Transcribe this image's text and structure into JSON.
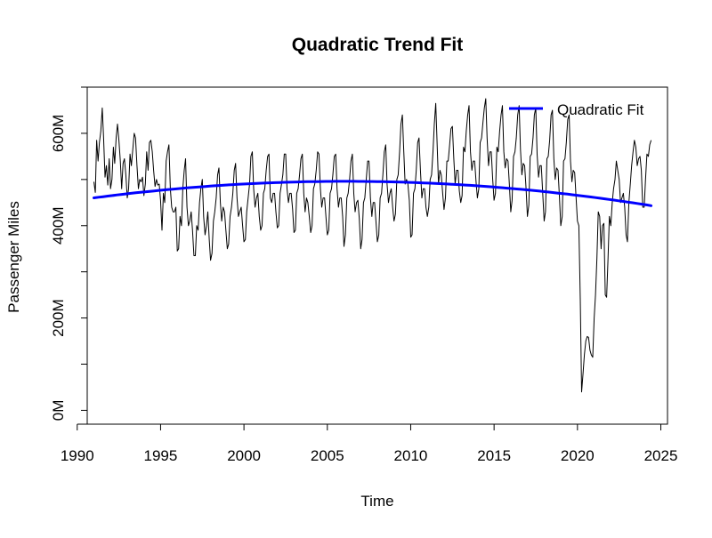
{
  "chart_data": {
    "type": "line",
    "title": "Quadratic Trend Fit",
    "xlabel": "Time",
    "ylabel": "Passenger Miles",
    "xlim": [
      1990.6,
      2025.4
    ],
    "ylim": [
      -30,
      700
    ],
    "x_ticks": [
      1990,
      1995,
      2000,
      2005,
      2010,
      2015,
      2020,
      2025
    ],
    "x_tick_labels": [
      "1990",
      "1995",
      "2000",
      "2005",
      "2010",
      "2015",
      "2020",
      "2025"
    ],
    "y_ticks": [
      0,
      100,
      200,
      300,
      400,
      500,
      600,
      700
    ],
    "y_tick_labels": [
      "0M",
      "",
      "200M",
      "",
      "400M",
      "",
      "600M",
      ""
    ],
    "y_unit": "millions",
    "legend": {
      "position": "top-right",
      "boxed": false
    },
    "series": [
      {
        "name": "",
        "color": "#000000",
        "kind": "monthly",
        "start": [
          1991,
          1
        ],
        "frequency": 12,
        "values": [
          495,
          472,
          585,
          540,
          580,
          605,
          655,
          590,
          505,
          530,
          488,
          545,
          480,
          500,
          570,
          535,
          590,
          620,
          585,
          540,
          480,
          535,
          545,
          510,
          460,
          480,
          555,
          530,
          565,
          600,
          590,
          530,
          480,
          500,
          495,
          505,
          465,
          490,
          560,
          520,
          580,
          585,
          560,
          520,
          485,
          500,
          488,
          490,
          455,
          390,
          470,
          450,
          540,
          560,
          575,
          480,
          440,
          430,
          430,
          440,
          345,
          350,
          420,
          400,
          480,
          520,
          545,
          440,
          400,
          410,
          430,
          390,
          335,
          335,
          400,
          390,
          450,
          480,
          500,
          420,
          380,
          400,
          430,
          370,
          325,
          340,
          410,
          430,
          460,
          510,
          525,
          450,
          410,
          440,
          430,
          390,
          350,
          360,
          420,
          440,
          470,
          520,
          535,
          460,
          420,
          430,
          440,
          400,
          365,
          370,
          430,
          460,
          490,
          550,
          560,
          480,
          440,
          460,
          470,
          420,
          390,
          400,
          470,
          480,
          520,
          550,
          555,
          460,
          450,
          470,
          470,
          430,
          395,
          400,
          470,
          490,
          510,
          555,
          555,
          480,
          450,
          470,
          470,
          435,
          385,
          390,
          470,
          480,
          510,
          545,
          555,
          470,
          430,
          460,
          450,
          420,
          385,
          400,
          480,
          490,
          520,
          560,
          555,
          480,
          440,
          460,
          460,
          420,
          380,
          390,
          470,
          480,
          510,
          550,
          555,
          480,
          440,
          460,
          460,
          420,
          355,
          380,
          460,
          470,
          500,
          540,
          555,
          470,
          430,
          450,
          455,
          415,
          350,
          370,
          450,
          460,
          500,
          540,
          540,
          460,
          420,
          450,
          450,
          410,
          365,
          380,
          460,
          470,
          510,
          560,
          575,
          490,
          450,
          470,
          480,
          440,
          410,
          425,
          500,
          510,
          560,
          620,
          640,
          560,
          490,
          500,
          490,
          455,
          375,
          380,
          470,
          480,
          520,
          580,
          590,
          520,
          460,
          480,
          480,
          440,
          420,
          440,
          500,
          510,
          560,
          620,
          665,
          580,
          490,
          520,
          510,
          470,
          435,
          460,
          540,
          540,
          575,
          610,
          615,
          545,
          490,
          520,
          520,
          475,
          450,
          465,
          570,
          560,
          605,
          640,
          660,
          560,
          520,
          540,
          540,
          495,
          460,
          480,
          580,
          590,
          625,
          655,
          675,
          590,
          530,
          560,
          560,
          500,
          455,
          470,
          570,
          560,
          605,
          640,
          660,
          560,
          525,
          545,
          540,
          490,
          430,
          455,
          550,
          560,
          590,
          640,
          660,
          565,
          510,
          535,
          530,
          480,
          420,
          445,
          550,
          555,
          590,
          640,
          655,
          555,
          505,
          530,
          530,
          470,
          410,
          430,
          545,
          550,
          585,
          640,
          650,
          545,
          500,
          525,
          520,
          465,
          400,
          420,
          540,
          545,
          580,
          630,
          640,
          540,
          495,
          520,
          515,
          460,
          410,
          400,
          240,
          40,
          80,
          120,
          150,
          160,
          158,
          130,
          120,
          115,
          200,
          250,
          330,
          430,
          420,
          350,
          400,
          405,
          250,
          245,
          330,
          420,
          400,
          450,
          480,
          500,
          540,
          520,
          500,
          450,
          460,
          470,
          440,
          380,
          365,
          450,
          490,
          530,
          560,
          585,
          570,
          530,
          545,
          550,
          520,
          440,
          440,
          500,
          555,
          550,
          575,
          585
        ]
      },
      {
        "name": "Quadratic Fit",
        "color": "#0000ff",
        "kind": "quadratic",
        "vertex_x": 2006.1,
        "vertex_y": 496,
        "curvature": -0.157,
        "x_start": 1991.0,
        "x_end": 2024.42
      }
    ]
  }
}
